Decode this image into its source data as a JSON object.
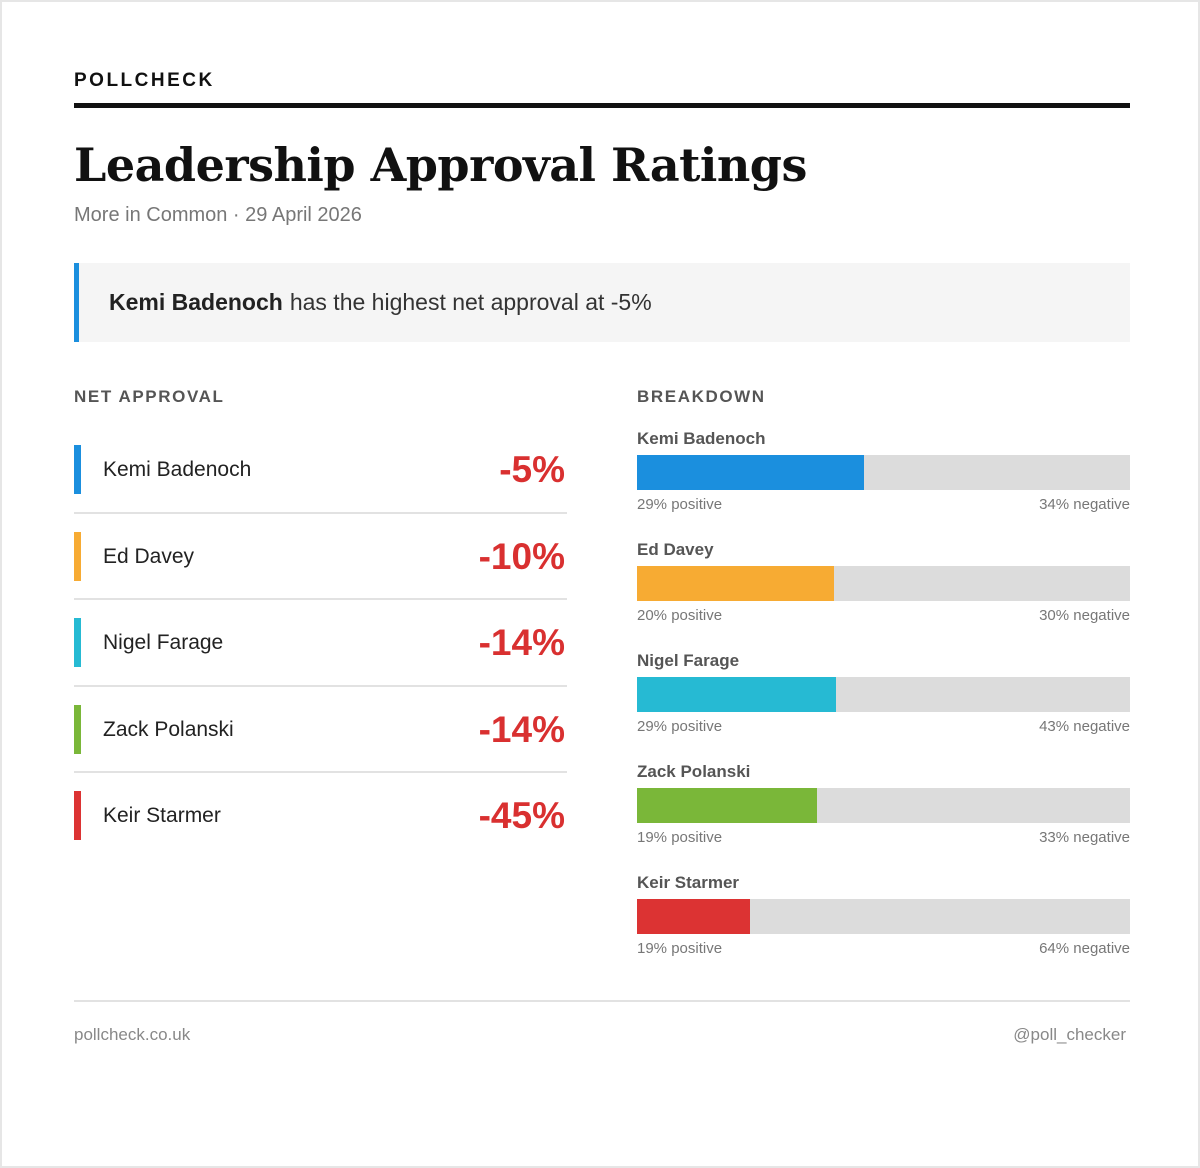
{
  "brand": "POLLCHECK",
  "title": "Leadership Approval Ratings",
  "subtitle": "More in Common · 29 April 2026",
  "callout": {
    "highlight": "Kemi Badenoch",
    "text": "has the highest net approval at -5%",
    "accent_color": "#1b8fde"
  },
  "net_approval": {
    "heading": "NET APPROVAL"
  },
  "breakdown": {
    "heading": "BREAKDOWN"
  },
  "chart_data": {
    "type": "bar",
    "categories": [
      "Kemi Badenoch",
      "Ed Davey",
      "Nigel Farage",
      "Zack Polanski",
      "Keir Starmer"
    ],
    "net_labels": [
      "-5%",
      "-10%",
      "-14%",
      "-14%",
      "-45%"
    ],
    "net_values": [
      -5,
      -10,
      -14,
      -14,
      -45
    ],
    "series": [
      {
        "values": [
          29,
          20,
          29,
          19,
          19
        ]
      },
      {
        "values": [
          34,
          30,
          43,
          33,
          64
        ]
      }
    ],
    "positive_labels": [
      "29% positive",
      "20% positive",
      "29% positive",
      "19% positive",
      "19% positive"
    ],
    "negative_labels": [
      "34% negative",
      "30% negative",
      "43% negative",
      "33% negative",
      "64% negative"
    ],
    "colors": [
      "#1b8fde",
      "#f7ab33",
      "#26bad3",
      "#7ab739",
      "#dc3333"
    ],
    "negative_value_color": "#d93030",
    "track_color": "#dcdcdc"
  },
  "footer": {
    "left": "pollcheck.co.uk",
    "right": "@poll_checker"
  }
}
